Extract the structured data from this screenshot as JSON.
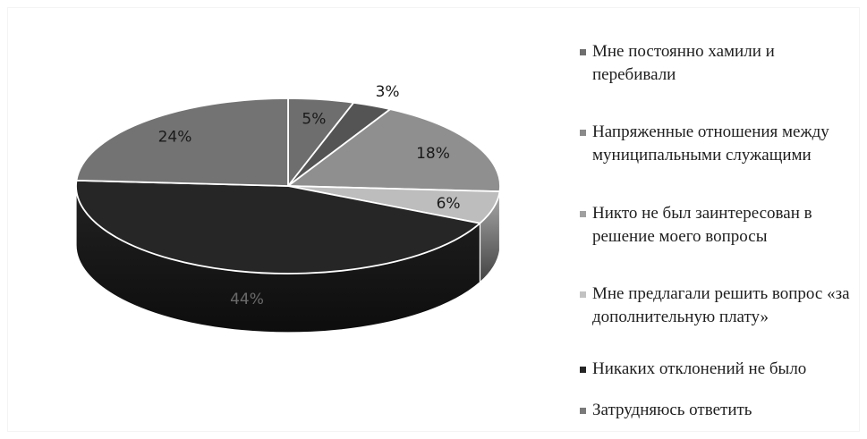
{
  "chart_data": {
    "type": "pie",
    "values": [
      5,
      3,
      18,
      6,
      44,
      24
    ],
    "data_labels": [
      "5%",
      "3%",
      "18%",
      "6%",
      "44%",
      "24%"
    ],
    "legend": [
      "Мне постоянно хамили и перебивали",
      "Напряженные отношения между муниципальными служащими",
      "Никто не был заинтересован в решение моего вопросы",
      "Мне предлагали решить вопрос «за дополнительную плату»",
      "Никаких отклонений не было",
      "Затрудняюсь ответить"
    ],
    "legend_position": "right",
    "colors": [
      "#6e6e6e",
      "#545454",
      "#8f8f8f",
      "#bdbdbd",
      "#262626",
      "#737373"
    ],
    "label_colors": [
      "#1a1a1a",
      "#1a1a1a",
      "#1a1a1a",
      "#1a1a1a",
      "#6a6a6a",
      "#1a1a1a"
    ],
    "legend_marker_colors": [
      "#6e6e6e",
      "#8a8a8a",
      "#a0a0a0",
      "#c2c2c2",
      "#262626",
      "#7a7a7a"
    ],
    "title": "",
    "three_d": true
  }
}
